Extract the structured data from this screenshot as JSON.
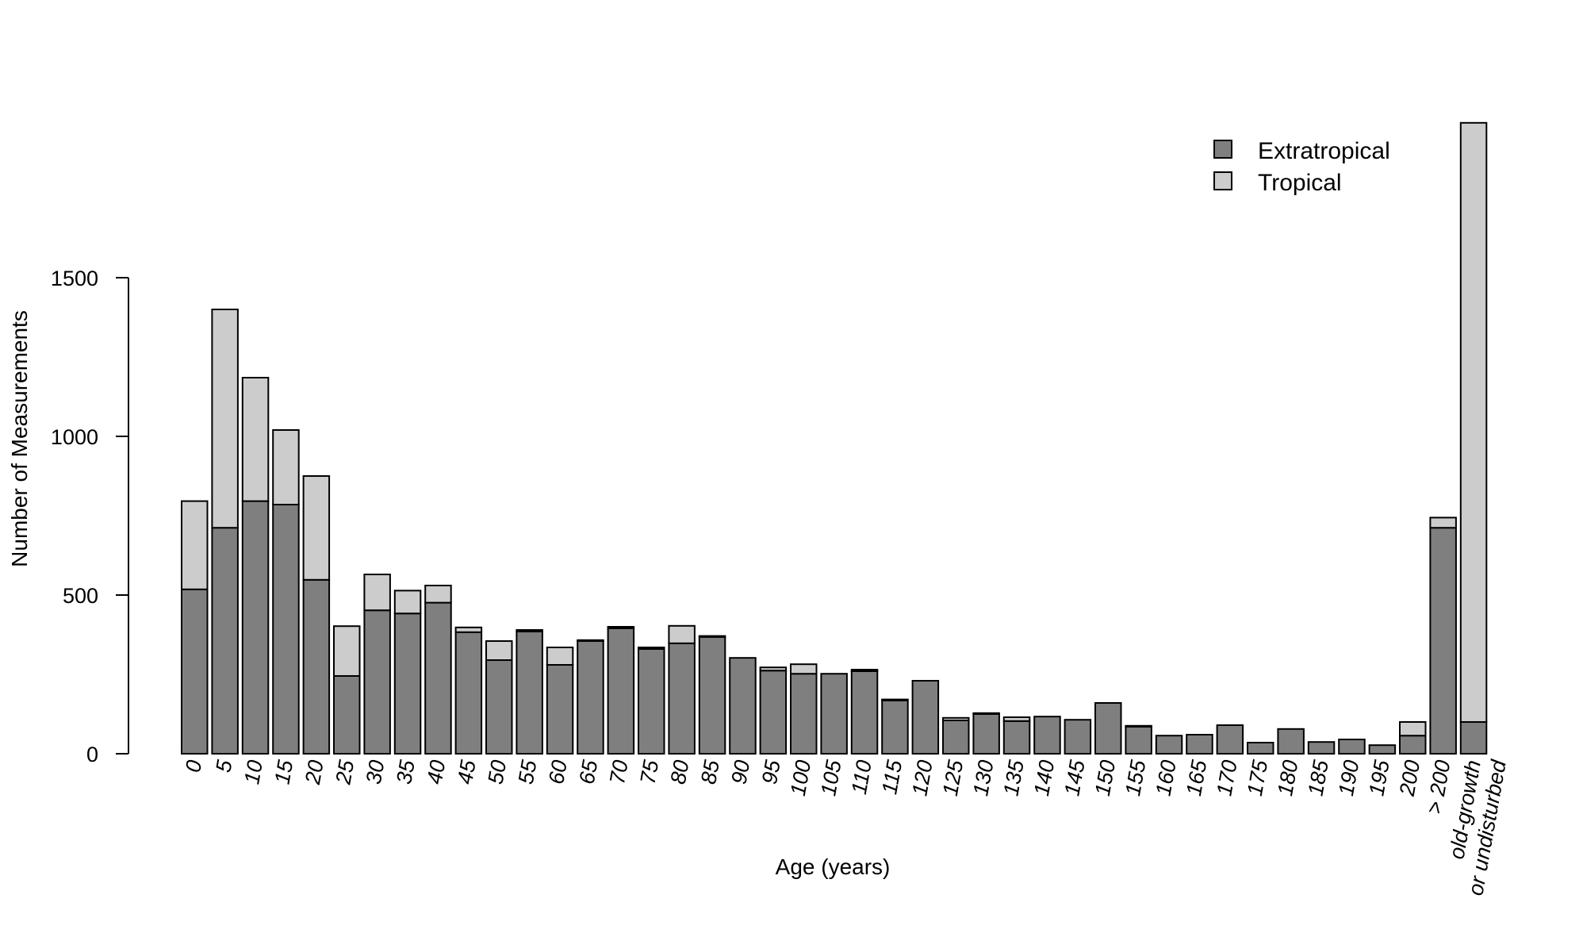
{
  "chart_data": {
    "type": "bar",
    "stacked": true,
    "title": "",
    "xlabel": "Age (years)",
    "ylabel": "Number of Measurements",
    "ylim": [
      0,
      2000
    ],
    "yticks": [
      0,
      500,
      1000,
      1500
    ],
    "grid": false,
    "legend_position": "top-right",
    "categories": [
      "0",
      "5",
      "10",
      "15",
      "20",
      "25",
      "30",
      "35",
      "40",
      "45",
      "50",
      "55",
      "60",
      "65",
      "70",
      "75",
      "80",
      "85",
      "90",
      "95",
      "100",
      "105",
      "110",
      "115",
      "120",
      "125",
      "130",
      "135",
      "140",
      "145",
      "150",
      "155",
      "160",
      "165",
      "170",
      "175",
      "180",
      "185",
      "190",
      "195",
      "200",
      "> 200",
      "old-growth\nor undisturbed"
    ],
    "series": [
      {
        "name": "Extratropical",
        "color": "#7f7f7f",
        "values": [
          518,
          712,
          796,
          785,
          548,
          245,
          452,
          442,
          476,
          383,
          295,
          385,
          280,
          355,
          395,
          330,
          348,
          368,
          302,
          262,
          252,
          252,
          260,
          168,
          230,
          105,
          125,
          103,
          117,
          107,
          160,
          85,
          57,
          60,
          90,
          35,
          78,
          37,
          45,
          27,
          57,
          712,
          100
        ]
      },
      {
        "name": "Tropical",
        "color": "#cccccc",
        "values": [
          278,
          688,
          389,
          235,
          327,
          157,
          113,
          72,
          54,
          15,
          60,
          5,
          55,
          3,
          5,
          5,
          55,
          3,
          0,
          10,
          30,
          0,
          5,
          3,
          0,
          8,
          3,
          12,
          0,
          0,
          0,
          3,
          0,
          0,
          0,
          0,
          0,
          0,
          0,
          0,
          43,
          32,
          1888
        ]
      }
    ]
  }
}
